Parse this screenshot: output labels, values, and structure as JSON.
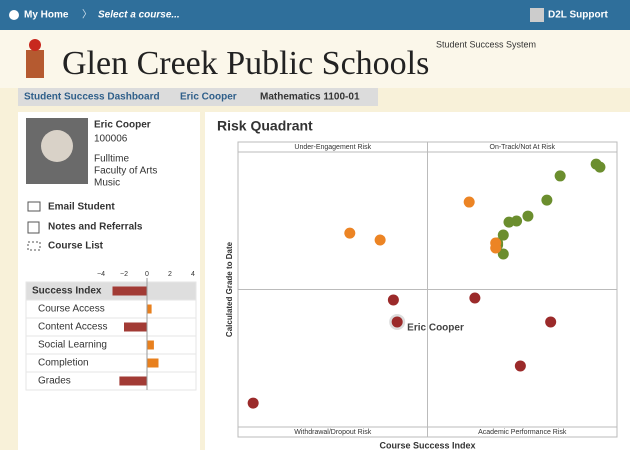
{
  "nav": {
    "home": "My Home",
    "course": "Select a course...",
    "user": "D2L Support"
  },
  "header": {
    "title": "Glen Creek Public Schools",
    "subtitle": "Student Success System"
  },
  "breadcrumbs": [
    "Student Success Dashboard",
    "Eric Cooper",
    "Mathematics 1100-01"
  ],
  "student": {
    "name": "Eric Cooper",
    "id": "100006",
    "status": "Fulltime",
    "faculty": "Faculty of Arts",
    "program": "Music"
  },
  "actions": [
    "Email Student",
    "Notes and Referrals",
    "Course List"
  ],
  "chart_data": [
    {
      "type": "bar",
      "orientation": "horizontal",
      "categories": [
        "Success Index",
        "Course Access",
        "Content Access",
        "Social Learning",
        "Completion",
        "Grades"
      ],
      "values": [
        -3,
        0.4,
        -2,
        0.6,
        1,
        -2.4
      ],
      "colors": [
        "#a23b35",
        "#e8801e",
        "#a23b35",
        "#e8801e",
        "#e8801e",
        "#a23b35"
      ],
      "xlim": [
        -4,
        4
      ],
      "xticks": [
        {
          "value": -4,
          "label": "−4"
        },
        {
          "value": -2,
          "label": "−2"
        },
        0,
        2,
        4
      ]
    },
    {
      "type": "scatter",
      "title": "Risk Quadrant",
      "xlabel": "Course Success Index",
      "ylabel": "Calculated Grade to Date",
      "quadrants": [
        "Under-Engagement Risk",
        "On-Track/Not At Risk",
        "Withdrawal/Dropout Risk",
        "Academic Performance Risk"
      ],
      "xlim": [
        -10,
        10
      ],
      "ylim": [
        0,
        100
      ],
      "series": [
        {
          "color": "#6b8e2e",
          "x": [
            8.9,
            9.1,
            7.0,
            6.3,
            5.3,
            4.7,
            4.3,
            4.0,
            3.7,
            3.7,
            4.0
          ],
          "values": [
            95.6,
            94.5,
            91.3,
            82.5,
            76.7,
            74.9,
            74.5,
            69.8,
            66.9,
            66.2,
            62.9
          ]
        },
        {
          "color": "#ec8424",
          "x": [
            2.2,
            -4.1,
            -2.5,
            3.6,
            3.6
          ],
          "values": [
            81.8,
            70.5,
            68,
            66.9,
            65.1
          ]
        },
        {
          "color": "#9b2a2a",
          "x": [
            -1.8,
            2.5,
            6.5,
            4.9,
            -9.2
          ],
          "values": [
            46.2,
            46.9,
            38.2,
            22.2,
            8.7
          ]
        },
        {
          "name": "Eric Cooper",
          "color": "#9b2a2a",
          "x": [
            -1.6
          ],
          "values": [
            38.2
          ]
        }
      ]
    }
  ]
}
